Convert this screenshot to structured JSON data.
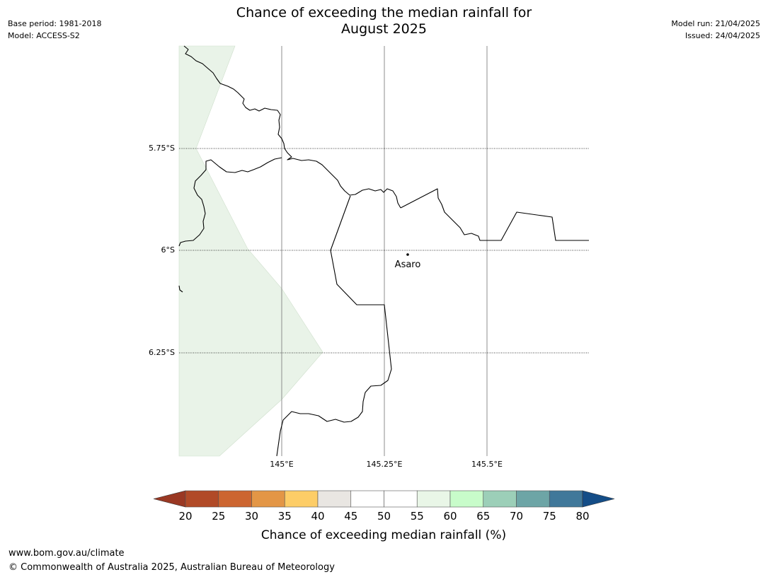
{
  "title": {
    "line1": "Chance of exceeding the median rainfall for",
    "line2": "August 2025"
  },
  "metadata": {
    "base_period": "Base period: 1981-2018",
    "model": "Model: ACCESS-S2",
    "model_run": "Model run: 21/04/2025",
    "issued": "Issued: 24/04/2025"
  },
  "map": {
    "latitude_labels": [
      "5.75°S",
      "6°S",
      "6.25°S"
    ],
    "longitude_labels": [
      "145°E",
      "145.25°E",
      "145.5°E"
    ],
    "place": {
      "name": "Asaro"
    },
    "shaded_region_color": "#e9f3e8",
    "border_color": "#000000"
  },
  "legend": {
    "ticks": [
      "20",
      "25",
      "30",
      "35",
      "40",
      "45",
      "50",
      "55",
      "60",
      "65",
      "70",
      "75",
      "80"
    ],
    "colors": [
      "#b14a27",
      "#cc6530",
      "#e39646",
      "#fdcd67",
      "#e9e6e2",
      "#ffffff",
      "#ffffff",
      "#e9f6e7",
      "#c8fcca",
      "#9ccfb8",
      "#6da5a6",
      "#40789a"
    ],
    "under_color": "#9a3823",
    "over_color": "#144d87",
    "label": "Chance of exceeding median rainfall (%)"
  },
  "footer": {
    "url": "www.bom.gov.au/climate",
    "copyright": "© Commonwealth of Australia 2025, Australian Bureau of Meteorology"
  }
}
